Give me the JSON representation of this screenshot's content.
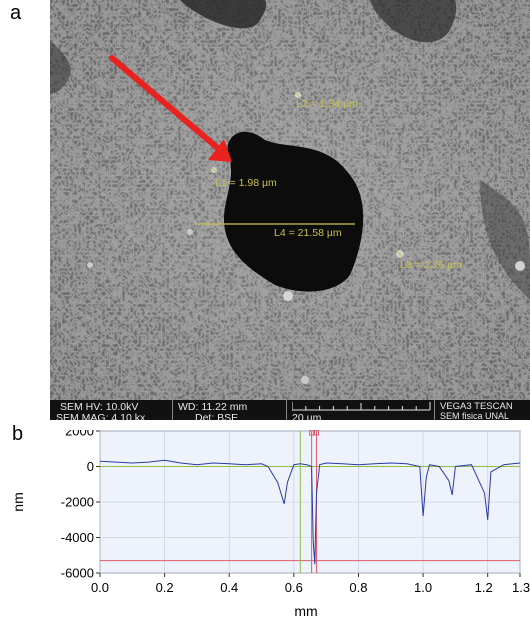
{
  "panel_a": {
    "letter": "a",
    "measurements": [
      {
        "label": "L2 = 1.34 µm"
      },
      {
        "label": "L1 = 1.98 µm"
      },
      {
        "label": "L4 = 21.58 µm"
      },
      {
        "label": "L3 = 2.26 µm"
      }
    ],
    "arrow_color": "#e8231f",
    "measure_color": "#c9c24a",
    "info": {
      "hv": "SEM HV: 10.0kV",
      "wd": "WD: 11.22 mm",
      "mag": "SEM MAG: 4.10 kx",
      "det": "Det: BSE",
      "scale": "20 µm",
      "brand": "VEGA3 TESCAN",
      "lab": "SEM fisica UNAL"
    }
  },
  "panel_b": {
    "letter": "b",
    "chart_data": {
      "type": "line",
      "xlabel": "mm",
      "ylabel": "nm",
      "xlim": [
        0.0,
        1.3
      ],
      "ylim": [
        -6000,
        2000
      ],
      "xticks": [
        "0.0",
        "0.2",
        "0.4",
        "0.6",
        "0.8",
        "1.0",
        "1.2",
        "1.3"
      ],
      "yticks": [
        "2000",
        "0",
        "-2000",
        "-4000",
        "-6000"
      ],
      "series": [
        {
          "color": "#2a3aa8",
          "x": [
            0.0,
            0.05,
            0.1,
            0.15,
            0.2,
            0.25,
            0.3,
            0.35,
            0.4,
            0.45,
            0.5,
            0.52,
            0.55,
            0.57,
            0.58,
            0.6,
            0.62,
            0.64,
            0.655,
            0.66,
            0.665,
            0.67,
            0.68,
            0.7,
            0.75,
            0.8,
            0.85,
            0.9,
            0.95,
            0.99,
            1.0,
            1.01,
            1.02,
            1.05,
            1.08,
            1.09,
            1.1,
            1.15,
            1.19,
            1.2,
            1.21,
            1.25,
            1.3
          ],
          "y": [
            300,
            250,
            200,
            250,
            350,
            200,
            100,
            200,
            150,
            100,
            150,
            0,
            -900,
            -2100,
            -900,
            100,
            150,
            100,
            0,
            -4200,
            -5500,
            -1500,
            100,
            200,
            150,
            100,
            150,
            200,
            150,
            0,
            -2800,
            -600,
            100,
            0,
            -800,
            -1600,
            0,
            100,
            -1500,
            -3000,
            -300,
            100,
            200
          ]
        }
      ],
      "reference_lines": {
        "baseline_y": 0,
        "baseline_color": "#8fbf4a",
        "floor_y": -5300,
        "floor_color": "#e05b6a",
        "markers_x": [
          0.62,
          0.655,
          0.67
        ],
        "marker_colors": [
          "#8fbf4a",
          "#e05b6a",
          "#e05b6a"
        ]
      }
    }
  }
}
